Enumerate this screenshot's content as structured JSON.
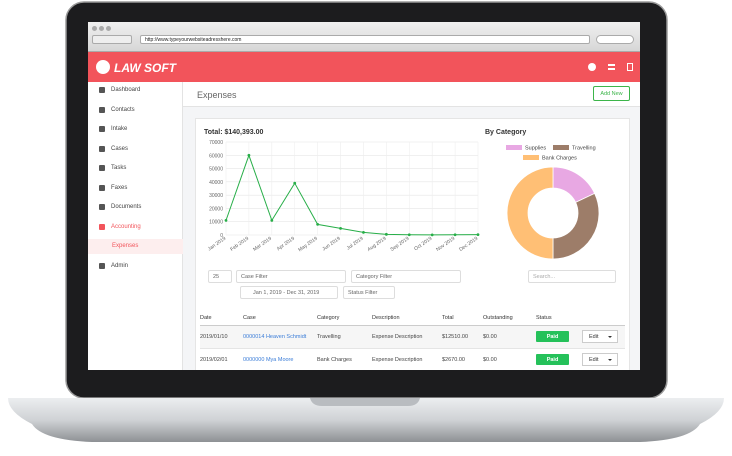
{
  "browser": {
    "url": "http://www.typeyourwebsiteadresshere.com"
  },
  "header": {
    "brand": "LAW SOFT"
  },
  "sidebar": {
    "items": [
      "Dashboard",
      "Contacts",
      "Intake",
      "Cases",
      "Tasks",
      "Faxes",
      "Documents",
      "Accounting",
      "Expenses",
      "Admin"
    ]
  },
  "page": {
    "title": "Expenses",
    "add_button": "Add New"
  },
  "line_chart": {
    "type": "line",
    "title": "Total: $140,393.00",
    "x": [
      "Jan 2019",
      "Feb 2019",
      "Mar 2019",
      "Apr 2019",
      "May 2019",
      "Jun 2019",
      "Jul 2019",
      "Aug 2019",
      "Sep 2019",
      "Oct 2019",
      "Nov 2019",
      "Dec 2019"
    ],
    "values": [
      11000,
      60000,
      11000,
      39000,
      8000,
      5000,
      2000,
      500,
      200,
      100,
      200,
      300
    ],
    "color": "#27ae48",
    "ylim": [
      0,
      70000
    ],
    "yticks": [
      0,
      10000,
      20000,
      30000,
      40000,
      50000,
      60000,
      70000
    ],
    "grid": true
  },
  "donut_chart": {
    "type": "pie",
    "title": "By Category",
    "categories": [
      "Supplies",
      "Travelling",
      "Bank Charges"
    ],
    "values": [
      18,
      32,
      50
    ],
    "colors": [
      "#e8a8e3",
      "#9d7d69",
      "#ffbf75"
    ]
  },
  "filters": {
    "page_size": "25",
    "case": "Case Filter",
    "category": "Category Filter",
    "date_range": "Jan 1, 2019 - Dec 31, 2019",
    "status": "Status Filter",
    "search": "Search..."
  },
  "table": {
    "columns": [
      "Date",
      "Case",
      "Category",
      "Description",
      "Total",
      "Outstanding",
      "Status"
    ],
    "rows": [
      [
        "2019/01/10",
        "0000014 Heaven Schmidt",
        "Travelling",
        "Expense Description",
        "$12510.00",
        "$0.00",
        "Paid",
        "Edit"
      ],
      [
        "2019/02/01",
        "0000000 Mya Moore",
        "Bank Charges",
        "Expense Description",
        "$2670.00",
        "$0.00",
        "Paid",
        "Edit"
      ]
    ]
  }
}
